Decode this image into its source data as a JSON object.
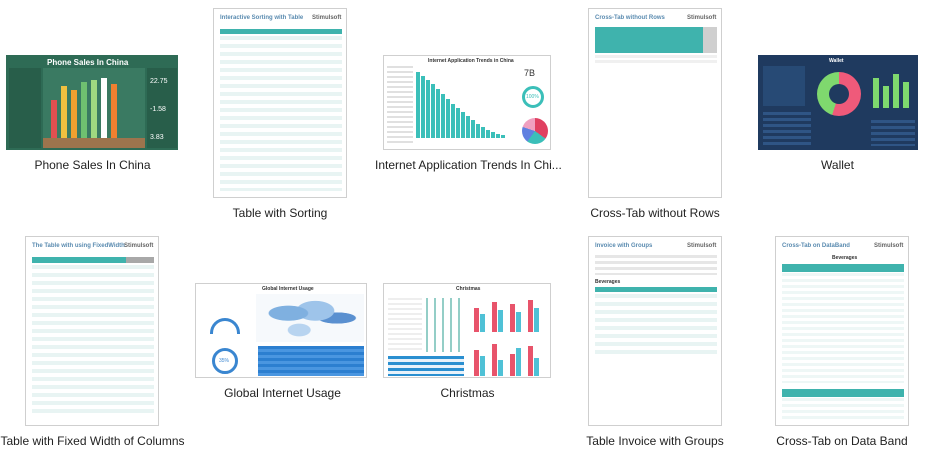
{
  "gallery": {
    "items": [
      {
        "caption": "Phone Sales In China"
      },
      {
        "caption": "Table with Sorting"
      },
      {
        "caption": "Internet Application Trends In Chi..."
      },
      {
        "caption": "Cross-Tab without Rows"
      },
      {
        "caption": "Wallet"
      },
      {
        "caption": "Table with Fixed Width of Columns"
      },
      {
        "caption": "Global Internet Usage"
      },
      {
        "caption": "Christmas"
      },
      {
        "caption": "Table Invoice with Groups"
      },
      {
        "caption": "Cross-Tab on Data Band"
      }
    ]
  },
  "previews": {
    "phone": {
      "title": "Phone Sales In China",
      "kpi1": "22.75",
      "kpi2": "-1.58",
      "kpi3": "3.83"
    },
    "sorting": {
      "title": "Interactive Sorting with Table",
      "brand": "Stimulsoft"
    },
    "trends": {
      "title": "Internet Application Trends in China",
      "kpi": "7B",
      "pct": "100%"
    },
    "crosstab": {
      "title": "Cross-Tab without Rows",
      "brand": "Stimulsoft"
    },
    "wallet": {
      "title": "Wallet"
    },
    "fixed": {
      "title": "The Table with using FixedWidth",
      "brand": "Stimulsoft"
    },
    "global": {
      "title": "Global Internet Usage",
      "pct": "35%"
    },
    "christmas": {
      "title": "Christmas"
    },
    "invoice": {
      "title": "Invoice with Groups",
      "brand": "Stimulsoft",
      "group": "Beverages"
    },
    "crossband": {
      "title": "Cross-Tab on DataBand",
      "brand": "Stimulsoft",
      "group": "Beverages"
    }
  }
}
